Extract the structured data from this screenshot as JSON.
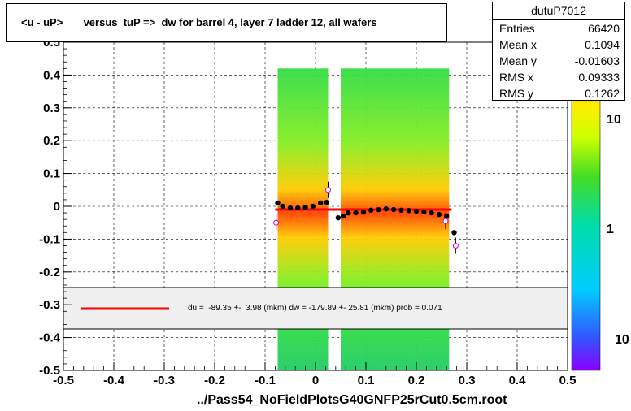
{
  "title": "<u - uP>       versus  tuP =>  dw for barrel 4, layer 7 ladder 12, all wafers",
  "stats": {
    "name": "dutuP7012",
    "rows": [
      {
        "key": "Entries",
        "value": "66420"
      },
      {
        "key": "Mean x",
        "value": "0.1094"
      },
      {
        "key": "Mean y",
        "value": "-0.01603"
      },
      {
        "key": "RMS x",
        "value": "0.09333"
      },
      {
        "key": "RMS y",
        "value": "0.1262"
      }
    ]
  },
  "fit_text": "du =  -89.35 +-  3.98 (mkm) dw = -179.89 +- 25.81 (mkm) prob = 0.071",
  "footer": "../Pass54_NoFieldPlotsG40GNFP25rCut0.5cm.root",
  "colors": {
    "fit_line": "#ff0000",
    "profile_points": "#000000",
    "outlier_points": "#cc00cc",
    "legend_band": "#f0f0f0"
  },
  "chart_data": {
    "type": "heatmap",
    "xlim": [
      -0.5,
      0.5
    ],
    "ylim": [
      -0.5,
      0.5
    ],
    "x_ticks": [
      "-0.5",
      "-0.4",
      "-0.3",
      "-0.2",
      "-0.1",
      "0",
      "0.1",
      "0.2",
      "0.3",
      "0.4",
      "0.5"
    ],
    "y_ticks": [
      "-0.5",
      "-0.4",
      "-0.3",
      "-0.2",
      "-0.1",
      "0",
      "0.1",
      "0.2",
      "0.3",
      "0.4",
      "0.5"
    ],
    "grid": true,
    "z_scale": "log",
    "z_ticks": [
      "10",
      "1",
      "10"
    ],
    "bands": [
      {
        "x_range": [
          -0.075,
          0.025
        ],
        "y_range": [
          -0.5,
          0.42
        ]
      },
      {
        "x_range": [
          0.05,
          0.265
        ],
        "y_range": [
          -0.5,
          0.42
        ]
      }
    ],
    "fit_line": {
      "x": [
        -0.08,
        0.27
      ],
      "y": [
        -0.01,
        -0.01
      ]
    },
    "profile": [
      {
        "x": -0.075,
        "y": 0.01
      },
      {
        "x": -0.065,
        "y": 0.0
      },
      {
        "x": -0.05,
        "y": -0.005
      },
      {
        "x": -0.035,
        "y": -0.005
      },
      {
        "x": -0.02,
        "y": -0.003
      },
      {
        "x": -0.005,
        "y": 0.0
      },
      {
        "x": 0.01,
        "y": 0.01
      },
      {
        "x": 0.022,
        "y": 0.012
      },
      {
        "x": 0.055,
        "y": -0.03
      },
      {
        "x": 0.065,
        "y": -0.02
      },
      {
        "x": 0.08,
        "y": -0.02
      },
      {
        "x": 0.095,
        "y": -0.018
      },
      {
        "x": 0.11,
        "y": -0.012
      },
      {
        "x": 0.125,
        "y": -0.01
      },
      {
        "x": 0.14,
        "y": -0.008
      },
      {
        "x": 0.155,
        "y": -0.01
      },
      {
        "x": 0.17,
        "y": -0.012
      },
      {
        "x": 0.185,
        "y": -0.013
      },
      {
        "x": 0.2,
        "y": -0.015
      },
      {
        "x": 0.215,
        "y": -0.017
      },
      {
        "x": 0.23,
        "y": -0.02
      },
      {
        "x": 0.245,
        "y": -0.025
      },
      {
        "x": 0.26,
        "y": -0.03
      },
      {
        "x": 0.275,
        "y": -0.08
      },
      {
        "x": 0.045,
        "y": -0.035
      }
    ],
    "outliers": [
      {
        "x": -0.078,
        "y": -0.05
      },
      {
        "x": 0.025,
        "y": 0.05
      },
      {
        "x": 0.258,
        "y": -0.045
      },
      {
        "x": 0.278,
        "y": -0.12
      }
    ]
  }
}
